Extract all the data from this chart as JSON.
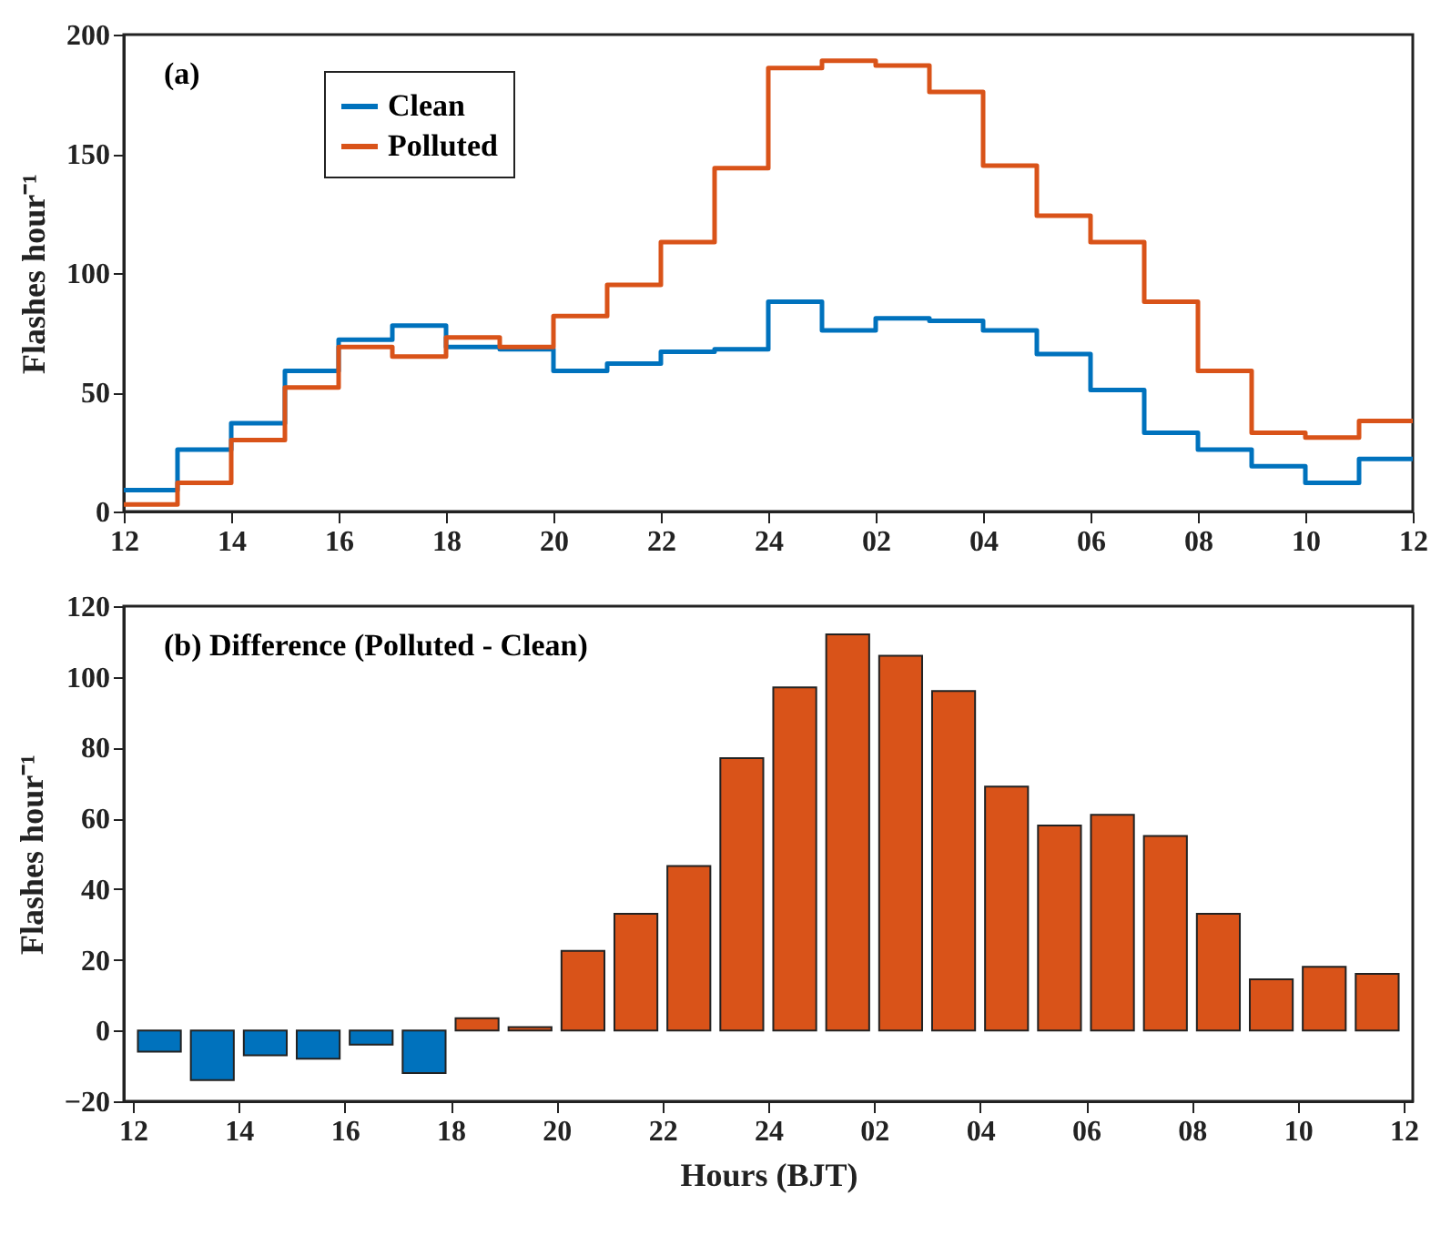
{
  "chart_data": [
    {
      "type": "step",
      "ylabel": "Flashes hour⁻¹",
      "annotations": [
        "(a)"
      ],
      "legend": "top left",
      "grid": false,
      "x": [
        "--01-01T12:00",
        "--01-01T13:00",
        "--01-01T14:00",
        "--01-01T15:00",
        "--01-01T16:00",
        "--01-01T17:00",
        "--01-01T18:00",
        "--01-01T19:00",
        "--01-01T20:00",
        "--01-01T21:00",
        "--01-01T22:00",
        "--01-01T23:00",
        "--01-02T00:00",
        "--01-02T01:00",
        "--01-02T02:00",
        "--01-02T03:00",
        "--01-02T04:00",
        "--01-02T05:00",
        "--01-02T06:00",
        "--01-02T07:00",
        "--01-02T08:00",
        "--01-02T09:00",
        "--01-02T10:00",
        "--01-02T11:00",
        "--01-02T12:00"
      ],
      "xlim": [
        "--01-01T12:00",
        "--01-02T12:00"
      ],
      "xticks": [
        {
          "value": "--01-01T12:00",
          "label": "12"
        },
        {
          "value": "--01-01T14:00",
          "label": "14"
        },
        {
          "value": "--01-01T16:00",
          "label": "16"
        },
        {
          "value": "--01-01T18:00",
          "label": "18"
        },
        {
          "value": "--01-01T20:00",
          "label": "20"
        },
        {
          "value": "--01-01T22:00",
          "label": "22"
        },
        {
          "value": "--01-02T00:00",
          "label": "24"
        },
        {
          "value": "--01-02T02:00",
          "label": "02"
        },
        {
          "value": "--01-02T04:00",
          "label": "04"
        },
        {
          "value": "--01-02T06:00",
          "label": "06"
        },
        {
          "value": "--01-02T08:00",
          "label": "08"
        },
        {
          "value": "--01-02T10:00",
          "label": "10"
        },
        {
          "value": "--01-02T12:00",
          "label": "12"
        }
      ],
      "ylim": [
        0,
        200
      ],
      "yticks": [
        0,
        50,
        100,
        150,
        200
      ],
      "series": [
        {
          "name": "Clean",
          "color": "#0072bd",
          "values": [
            9,
            26,
            37,
            59,
            72,
            78,
            69,
            68,
            59,
            62,
            67,
            68,
            88,
            76,
            81,
            80,
            76,
            66,
            51,
            33,
            26,
            19,
            12,
            22,
            22
          ]
        },
        {
          "name": "Polluted",
          "color": "#d95319",
          "values": [
            3,
            12,
            30,
            52,
            69,
            65,
            73,
            69,
            82,
            95,
            113,
            144,
            186,
            189,
            187,
            176,
            145,
            124,
            113,
            88,
            59,
            33,
            31,
            38,
            38
          ]
        }
      ]
    },
    {
      "type": "bar",
      "ylabel": "Flashes hour⁻¹",
      "xlabel": "Hours (BJT)",
      "annotations": [
        "(b) Difference (Polluted - Clean)"
      ],
      "grid": false,
      "x": [
        "--01-01T12:30",
        "--01-01T13:30",
        "--01-01T14:30",
        "--01-01T15:30",
        "--01-01T16:30",
        "--01-01T17:30",
        "--01-01T18:30",
        "--01-01T19:30",
        "--01-01T20:30",
        "--01-01T21:30",
        "--01-01T22:30",
        "--01-01T23:30",
        "--01-02T00:30",
        "--01-02T01:30",
        "--01-02T02:30",
        "--01-02T03:30",
        "--01-02T04:30",
        "--01-02T05:30",
        "--01-02T06:30",
        "--01-02T07:30",
        "--01-02T08:30",
        "--01-02T09:30",
        "--01-02T10:30",
        "--01-02T11:30"
      ],
      "xlim": [
        "--01-01T12:00",
        "--01-02T12:00"
      ],
      "xticks": [
        {
          "value": "--01-01T12:00",
          "label": "12"
        },
        {
          "value": "--01-01T14:00",
          "label": "14"
        },
        {
          "value": "--01-01T16:00",
          "label": "16"
        },
        {
          "value": "--01-01T18:00",
          "label": "18"
        },
        {
          "value": "--01-01T20:00",
          "label": "20"
        },
        {
          "value": "--01-01T22:00",
          "label": "22"
        },
        {
          "value": "--01-02T00:00",
          "label": "24"
        },
        {
          "value": "--01-02T02:00",
          "label": "02"
        },
        {
          "value": "--01-02T04:00",
          "label": "04"
        },
        {
          "value": "--01-02T06:00",
          "label": "06"
        },
        {
          "value": "--01-02T08:00",
          "label": "08"
        },
        {
          "value": "--01-02T10:00",
          "label": "10"
        },
        {
          "value": "--01-02T12:00",
          "label": "12"
        }
      ],
      "ylim": [
        -20,
        120
      ],
      "yticks": [
        -20,
        0,
        20,
        40,
        60,
        80,
        100,
        120
      ],
      "values": [
        -6,
        -14,
        -7,
        -8,
        -4,
        -12,
        3.5,
        1,
        22.5,
        33,
        46.5,
        77,
        97,
        112,
        106,
        96,
        69,
        58,
        61,
        55,
        33,
        14.5,
        18,
        16
      ],
      "colors": [
        "#0072bd",
        "#0072bd",
        "#0072bd",
        "#0072bd",
        "#0072bd",
        "#0072bd",
        "#d95319",
        "#d95319",
        "#d95319",
        "#d95319",
        "#d95319",
        "#d95319",
        "#d95319",
        "#d95319",
        "#d95319",
        "#d95319",
        "#d95319",
        "#d95319",
        "#d95319",
        "#d95319",
        "#d95319",
        "#d95319",
        "#d95319",
        "#d95319"
      ]
    }
  ]
}
